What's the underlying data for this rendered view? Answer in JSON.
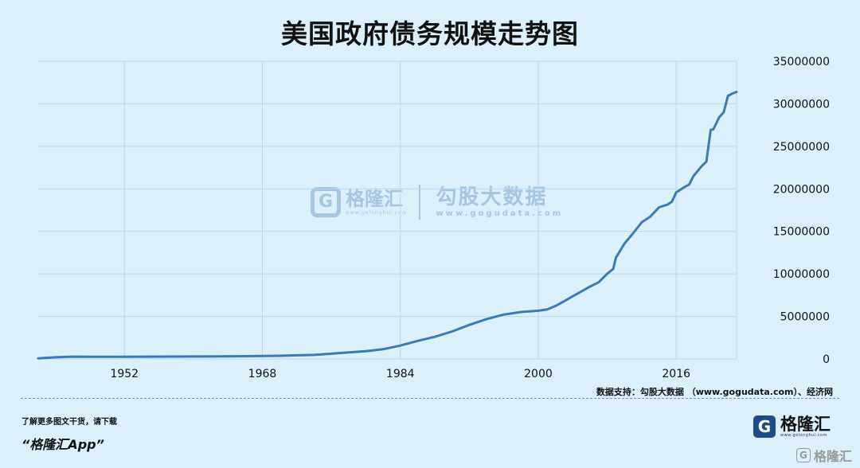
{
  "title": "美国政府债务规模走势图",
  "source": "数据支持：勾股大数据 （www.gogudata.com）、经济网",
  "promo": {
    "line": "了解更多图文干货，请下载",
    "app": "“格隆汇App”"
  },
  "brand": {
    "badge": "G",
    "name": "格隆汇",
    "domain": "www.gelonghui.com"
  },
  "watermark": {
    "badge": "G",
    "name": "格隆汇",
    "domain": "www.gelonghui.com",
    "name2": "勾股大数据",
    "domain2": "www.gogudata.com"
  },
  "corner_watermark": {
    "badge": "G",
    "name": "格隆汇"
  },
  "colors": {
    "background": "#dcf0fb",
    "line": "#3a7ab7",
    "grid": "#b9d7e7"
  },
  "chart_data": {
    "type": "line",
    "title": "美国政府债务规模走势图",
    "x_ticks": [
      1952,
      1968,
      1984,
      2000,
      2016
    ],
    "y_ticks": [
      0,
      5000000,
      10000000,
      15000000,
      20000000,
      25000000,
      30000000,
      35000000
    ],
    "y_tick_labels": [
      "0",
      "5000000",
      "10000000",
      "15000000",
      "20000000",
      "25000000",
      "30000000",
      "35000000"
    ],
    "xlim": [
      1942,
      2023
    ],
    "ylim": [
      0,
      35000000
    ],
    "y_axis_position": "right",
    "grid": true,
    "series": [
      {
        "x": [
          1942,
          1944,
          1946,
          1948,
          1950,
          1952,
          1955,
          1960,
          1965,
          1968,
          1970,
          1972,
          1974,
          1976,
          1978,
          1980,
          1982,
          1984,
          1986,
          1988,
          1990,
          1992,
          1994,
          1996,
          1998,
          2000,
          2001,
          2002,
          2003,
          2004,
          2005,
          2006,
          2007,
          2008,
          2008.7,
          2009,
          2010,
          2011,
          2012,
          2013,
          2014,
          2015,
          2015.5,
          2016,
          2017,
          2017.5,
          2018,
          2019,
          2019.5,
          2020,
          2020.3,
          2021,
          2021.5,
          2022,
          2022.5,
          2023
        ],
        "y": [
          72000,
          201000,
          269000,
          252000,
          257000,
          259000,
          274000,
          286000,
          317000,
          348000,
          370000,
          427000,
          475000,
          620000,
          772000,
          907000,
          1142000,
          1572000,
          2125000,
          2602000,
          3233000,
          4002000,
          4693000,
          5225000,
          5526000,
          5674000,
          5807000,
          6228000,
          6783000,
          7379000,
          7933000,
          8507000,
          9008000,
          10025000,
          10600000,
          11900000,
          13562000,
          14790000,
          16066000,
          16738000,
          17824000,
          18151000,
          18500000,
          19573000,
          20245000,
          20500000,
          21516000,
          22719000,
          23200000,
          26945000,
          27000000,
          28430000,
          29000000,
          30929000,
          31200000,
          31400000
        ]
      }
    ]
  }
}
